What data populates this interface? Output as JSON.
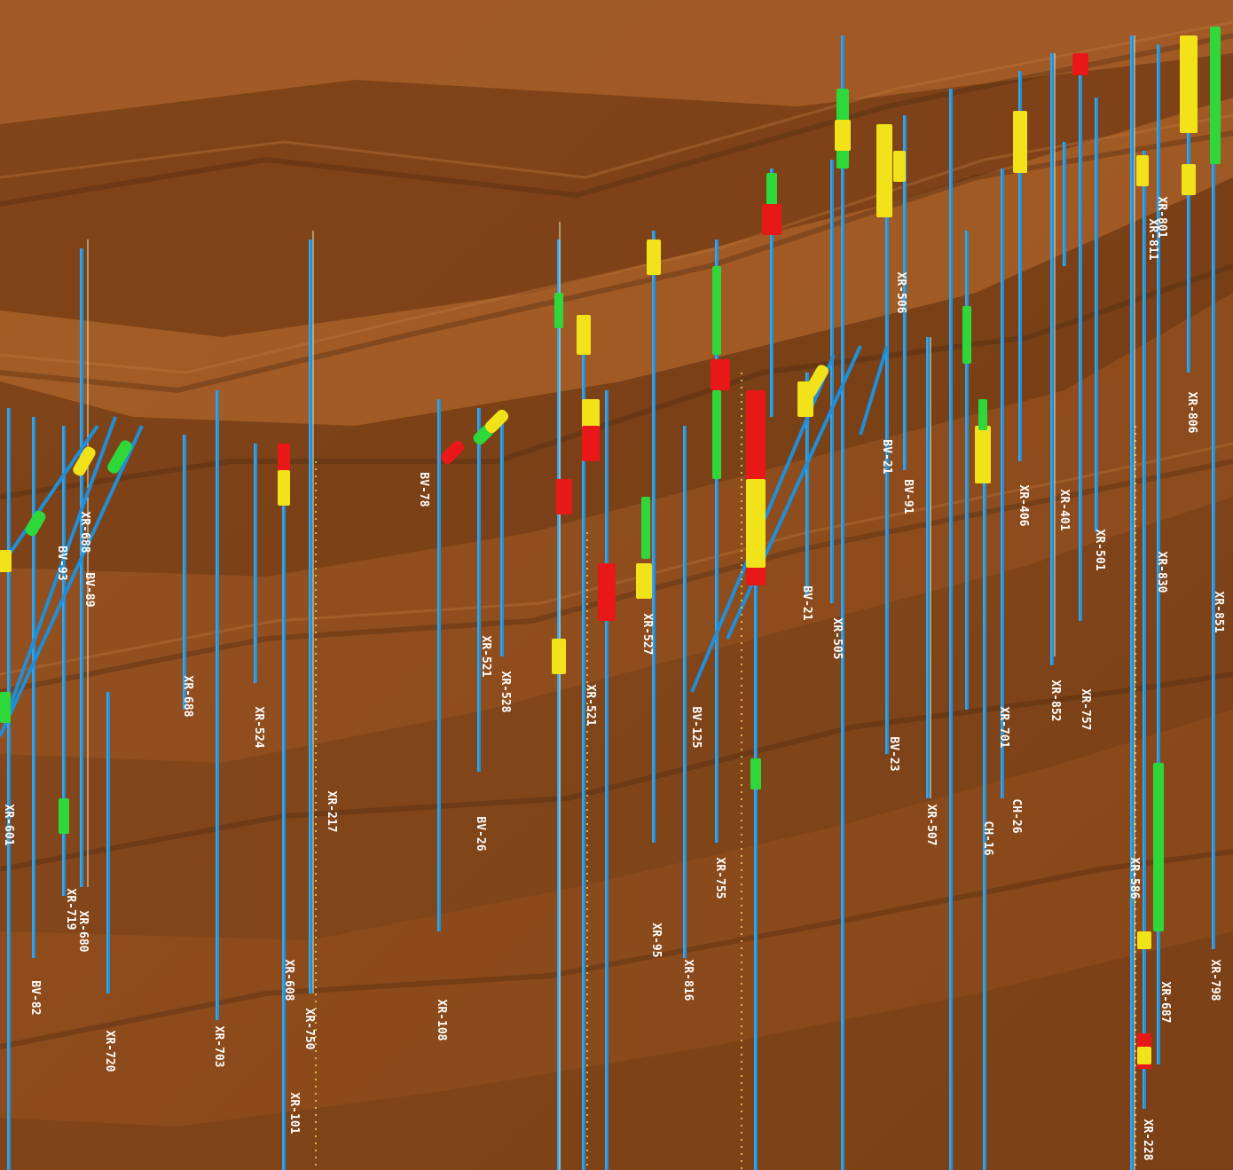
{
  "scene": {
    "colors": {
      "background": "#1d2a33",
      "terrain_base": "#8a4a1c",
      "terrain_light": "#b26a34",
      "terrain_dark": "#4a2810",
      "hole_trace": "#1e8fd8",
      "hole_trace_light": "#6ec8ff",
      "collar_line": "#d9f0d0",
      "interval_low": "#2ed83a",
      "interval_mid": "#f2e21a",
      "interval_high": "#e81818",
      "label": "#ffffff"
    },
    "hole_labels": [
      "XR-601",
      "BV-93",
      "XR-719",
      "XR-680",
      "BV-89",
      "XR-720",
      "XR-688",
      "BV-82",
      "XR-703",
      "XR-524",
      "XR-688",
      "XR-217",
      "XR-608",
      "XR-750",
      "XR-101",
      "BV-78",
      "XR-521",
      "XR-528",
      "BV-26",
      "XR-108",
      "XR-527",
      "XR-521",
      "XR-95",
      "XR-816",
      "XR-755",
      "BV-125",
      "BV-21",
      "XR-505",
      "BV-23",
      "XR-507",
      "BV-91",
      "XR-701",
      "CH-26",
      "CH-16",
      "XR-852",
      "XR-757",
      "XR-586",
      "XR-830",
      "XR-228",
      "XR-851",
      "XR-798",
      "XR-806",
      "XR-406",
      "XR-401",
      "BV-21",
      "XR-506",
      "XR-801",
      "XR-811",
      "XR-501",
      "XR-687"
    ]
  }
}
